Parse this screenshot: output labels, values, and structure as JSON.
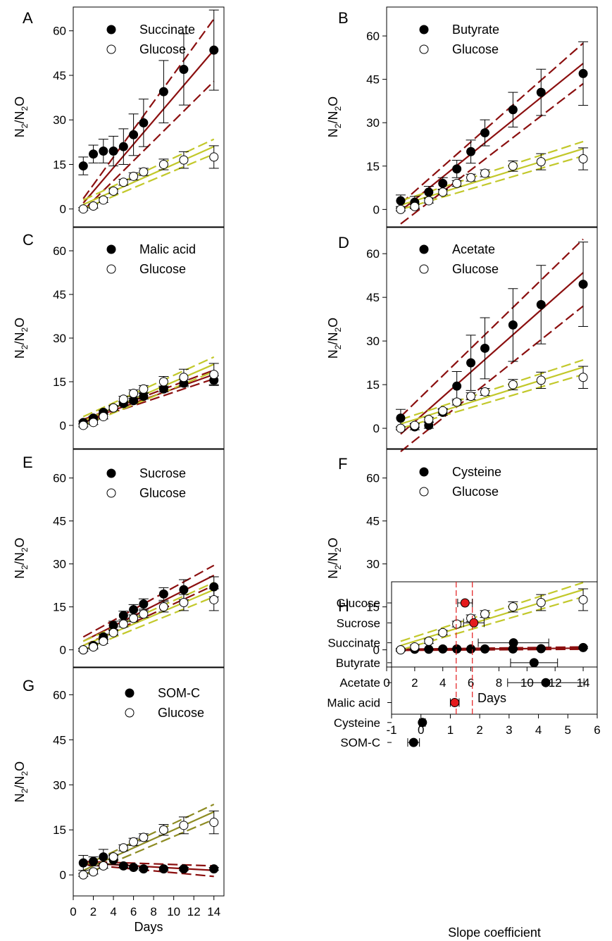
{
  "colors": {
    "treatment_fit": "#8b0f0f",
    "glucose_fit": "#c2c82a",
    "glucose_fit_g": "#8d8b22",
    "highlight_point": "#e41a1c",
    "reference_line": "#e41a1c"
  },
  "chart_data": [
    {
      "panel": "A",
      "type": "scatter",
      "ylabel_main": "N",
      "ylabel_sub1": "2",
      "ylabel_mid": "/N",
      "ylabel_sub2": "2",
      "ylabel_end": "O",
      "xlabel": "",
      "xlim": [
        0,
        15
      ],
      "ylim": [
        -6,
        68
      ],
      "y_ticks": [
        "0",
        "15",
        "30",
        "45",
        "60"
      ],
      "x_ticks": [],
      "legend": [
        "Succinate",
        "Glucose"
      ],
      "x": [
        1,
        2,
        3,
        4,
        5,
        6,
        7,
        9,
        11,
        14
      ],
      "series": [
        {
          "name": "Succinate",
          "marker": "filled",
          "y": [
            14.5,
            18.5,
            19.5,
            19.5,
            21,
            25,
            29,
            39.5,
            47,
            53.5
          ],
          "err": [
            3,
            3,
            4,
            5,
            6,
            7,
            8,
            10.5,
            12,
            13.5
          ],
          "fit": {
            "center": [
              2.0,
              53.5
            ],
            "upper": [
              3.5,
              64
            ],
            "lower": [
              -0.5,
              43
            ]
          }
        },
        {
          "name": "Glucose",
          "marker": "open",
          "y": [
            0,
            1,
            3,
            6,
            9,
            11,
            12.5,
            15,
            16.5,
            17.5
          ],
          "err": [
            0.5,
            0.7,
            0.8,
            0.8,
            1,
            1.2,
            1.2,
            1.8,
            2.8,
            3.8
          ],
          "fit": {
            "center": [
              1.5,
              21.0
            ],
            "upper": [
              3.0,
              23.5
            ],
            "lower": [
              0.0,
              18.5
            ]
          }
        }
      ]
    },
    {
      "panel": "B",
      "type": "scatter",
      "ylabel_main": "N",
      "ylabel_sub1": "2",
      "ylabel_mid": "/N",
      "ylabel_sub2": "2",
      "ylabel_end": "O",
      "xlabel": "",
      "xlim": [
        0,
        15
      ],
      "ylim": [
        -6,
        70
      ],
      "y_ticks": [
        "0",
        "15",
        "30",
        "45",
        "60"
      ],
      "x_ticks": [],
      "legend": [
        "Butyrate",
        "Glucose"
      ],
      "x": [
        1,
        2,
        3,
        4,
        5,
        6,
        7,
        9,
        11,
        14
      ],
      "series": [
        {
          "name": "Butyrate",
          "marker": "filled",
          "y": [
            3,
            2.5,
            6,
            9,
            14,
            20,
            26.5,
            34.5,
            40.5,
            47
          ],
          "err": [
            2,
            2,
            2,
            2,
            3,
            4,
            4.5,
            6,
            8,
            11
          ],
          "fit": {
            "center": [
              -0.5,
              50.5
            ],
            "upper": [
              2.0,
              57.5
            ],
            "lower": [
              -5.0,
              43.5
            ]
          }
        },
        {
          "name": "Glucose",
          "marker": "open",
          "y": [
            0,
            1,
            3,
            6,
            9,
            11,
            12.5,
            15,
            16.5,
            17.5
          ],
          "err": [
            0.5,
            0.7,
            0.8,
            0.8,
            1,
            1.2,
            1.2,
            1.8,
            2.8,
            3.8
          ],
          "fit": {
            "center": [
              1.5,
              21.0
            ],
            "upper": [
              3.0,
              23.5
            ],
            "lower": [
              0.0,
              18.5
            ]
          }
        }
      ]
    },
    {
      "panel": "C",
      "type": "scatter",
      "ylabel_main": "N",
      "ylabel_sub1": "2",
      "ylabel_mid": "/N",
      "ylabel_sub2": "2",
      "ylabel_end": "O",
      "xlabel": "",
      "xlim": [
        0,
        15
      ],
      "ylim": [
        -8,
        68
      ],
      "y_ticks": [
        "0",
        "15",
        "30",
        "45",
        "60"
      ],
      "x_ticks": [],
      "legend": [
        "Malic acid",
        "Glucose"
      ],
      "x": [
        1,
        2,
        3,
        4,
        5,
        6,
        7,
        9,
        11,
        14
      ],
      "series": [
        {
          "name": "Malic acid",
          "marker": "filled",
          "y": [
            1,
            2.5,
            4.5,
            6,
            7.5,
            8.5,
            10,
            12.5,
            14.5,
            15.5
          ],
          "err": [
            0.5,
            0.6,
            0.6,
            0.7,
            0.8,
            0.8,
            1,
            1,
            1.2,
            1.5
          ],
          "fit": {
            "center": [
              1.5,
              17.5
            ],
            "upper": [
              2.0,
              19.0
            ],
            "lower": [
              1.0,
              16.0
            ]
          }
        },
        {
          "name": "Glucose",
          "marker": "open",
          "y": [
            0,
            1,
            3,
            6,
            9,
            11,
            12.5,
            15,
            16.5,
            17.5
          ],
          "err": [
            0.5,
            0.7,
            0.8,
            0.8,
            1,
            1.2,
            1.2,
            1.8,
            2.8,
            3.8
          ],
          "fit": {
            "center": [
              1.5,
              21.0
            ],
            "upper": [
              3.0,
              23.5
            ],
            "lower": [
              0.0,
              18.5
            ]
          }
        }
      ]
    },
    {
      "panel": "D",
      "type": "scatter",
      "ylabel_main": "N",
      "ylabel_sub1": "2",
      "ylabel_mid": "/N",
      "ylabel_sub2": "2",
      "ylabel_end": "O",
      "xlabel": "",
      "xlim": [
        0,
        15
      ],
      "ylim": [
        -7,
        69
      ],
      "y_ticks": [
        "0",
        "15",
        "30",
        "45",
        "60"
      ],
      "x_ticks": [],
      "legend": [
        "Acetate",
        "Glucose"
      ],
      "x": [
        1,
        2,
        3,
        4,
        5,
        6,
        7,
        9,
        11,
        14
      ],
      "series": [
        {
          "name": "Acetate",
          "marker": "filled",
          "y": [
            3.5,
            0.5,
            1,
            5.5,
            14.5,
            22.5,
            27.5,
            35.5,
            42.5,
            49.5
          ],
          "err": [
            3,
            1,
            1,
            1,
            5,
            9.5,
            10.5,
            12.5,
            13.5,
            14.5
          ],
          "fit": {
            "center": [
              -2.0,
              53.5
            ],
            "upper": [
              4.0,
              65.0
            ],
            "lower": [
              -8.0,
              42.0
            ]
          }
        },
        {
          "name": "Glucose",
          "marker": "open",
          "y": [
            0,
            1,
            3,
            6,
            9,
            11,
            12.5,
            15,
            16.5,
            17.5
          ],
          "err": [
            0.5,
            0.7,
            0.8,
            0.8,
            1,
            1.2,
            1.2,
            1.8,
            2.8,
            3.8
          ],
          "fit": {
            "center": [
              1.5,
              21.0
            ],
            "upper": [
              3.0,
              23.5
            ],
            "lower": [
              0.0,
              18.5
            ]
          }
        }
      ]
    },
    {
      "panel": "E",
      "type": "scatter",
      "ylabel_main": "N",
      "ylabel_sub1": "2",
      "ylabel_mid": "/N",
      "ylabel_sub2": "2",
      "ylabel_end": "O",
      "xlabel": "",
      "xlim": [
        0,
        15
      ],
      "ylim": [
        -6,
        70
      ],
      "y_ticks": [
        "0",
        "15",
        "30",
        "45",
        "60"
      ],
      "x_ticks": [],
      "legend": [
        "Sucrose",
        "Glucose"
      ],
      "x": [
        1,
        2,
        3,
        4,
        5,
        6,
        7,
        9,
        11,
        14
      ],
      "series": [
        {
          "name": "Sucrose",
          "marker": "filled",
          "y": [
            0,
            1.5,
            4.5,
            8.5,
            12,
            14,
            16,
            19.5,
            21,
            22
          ],
          "err": [
            0.5,
            0.8,
            1,
            1.5,
            1.5,
            1.8,
            1.8,
            2.2,
            3.5,
            3.5
          ],
          "fit": {
            "center": [
              3.0,
              26.0
            ],
            "upper": [
              4.5,
              29.5
            ],
            "lower": [
              1.5,
              22.5
            ]
          }
        },
        {
          "name": "Glucose",
          "marker": "open",
          "y": [
            0,
            1,
            3,
            6,
            9,
            11,
            12.5,
            15,
            16.5,
            17.5
          ],
          "err": [
            0.5,
            0.7,
            0.8,
            0.8,
            1,
            1.2,
            1.2,
            1.8,
            2.8,
            3.8
          ],
          "fit": {
            "center": [
              1.5,
              21.0
            ],
            "upper": [
              3.0,
              23.5
            ],
            "lower": [
              0.0,
              18.5
            ]
          }
        }
      ]
    },
    {
      "panel": "F",
      "type": "scatter",
      "ylabel_main": "N",
      "ylabel_sub1": "2",
      "ylabel_mid": "/N",
      "ylabel_sub2": "2",
      "ylabel_end": "O",
      "xlabel": "Days",
      "xlim": [
        0,
        15
      ],
      "ylim": [
        -6,
        70
      ],
      "y_ticks": [
        "0",
        "15",
        "30",
        "45",
        "60"
      ],
      "x_ticks": [
        "0",
        "2",
        "4",
        "6",
        "8",
        "10",
        "12",
        "14"
      ],
      "legend": [
        "Cysteine",
        "Glucose"
      ],
      "x": [
        1,
        2,
        3,
        4,
        5,
        6,
        7,
        9,
        11,
        14
      ],
      "series": [
        {
          "name": "Cysteine",
          "marker": "filled",
          "y": [
            0,
            0.2,
            0.2,
            0.3,
            0.3,
            0.3,
            0.3,
            0.3,
            0.4,
            0.8
          ],
          "err": [
            0.1,
            0.1,
            0.1,
            0.1,
            0.1,
            0.1,
            0.1,
            0.1,
            0.2,
            0.3
          ],
          "fit": {
            "center": [
              0.0,
              0.6
            ],
            "upper": [
              0.2,
              1.0
            ],
            "lower": [
              -0.2,
              0.2
            ]
          }
        },
        {
          "name": "Glucose",
          "marker": "open",
          "y": [
            0,
            1,
            3,
            6,
            9,
            11,
            12.5,
            15,
            16.5,
            17.5
          ],
          "err": [
            0.5,
            0.7,
            0.8,
            0.8,
            1,
            1.2,
            1.2,
            1.8,
            2.8,
            3.8
          ],
          "fit": {
            "center": [
              1.5,
              21.0
            ],
            "upper": [
              3.0,
              23.5
            ],
            "lower": [
              0.0,
              18.5
            ]
          }
        }
      ]
    },
    {
      "panel": "G",
      "type": "scatter",
      "ylabel_main": "N",
      "ylabel_sub1": "2",
      "ylabel_mid": "/N",
      "ylabel_sub2": "2",
      "ylabel_end": "O",
      "xlabel": "Days",
      "xlim": [
        0,
        15
      ],
      "ylim": [
        -7,
        69
      ],
      "y_ticks": [
        "0",
        "15",
        "30",
        "45",
        "60"
      ],
      "x_ticks": [
        "0",
        "2",
        "4",
        "6",
        "8",
        "10",
        "12",
        "14"
      ],
      "legend": [
        "SOM-C",
        "Glucose"
      ],
      "x": [
        1,
        2,
        3,
        4,
        5,
        6,
        7,
        9,
        11,
        14
      ],
      "series": [
        {
          "name": "SOM-C",
          "marker": "filled",
          "y": [
            4,
            4.5,
            6,
            5,
            3,
            2.5,
            2,
            2,
            2,
            2
          ],
          "err": [
            2.5,
            1.5,
            2.5,
            1.5,
            0.5,
            0.5,
            0.5,
            0.5,
            0.5,
            0.5
          ],
          "fit": {
            "center": [
              4.0,
              1.5
            ],
            "upper": [
              4.5,
              3.0
            ],
            "lower": [
              3.5,
              -0.5
            ]
          }
        },
        {
          "name": "Glucose",
          "marker": "open",
          "y": [
            0,
            1,
            3,
            6,
            9,
            11,
            12.5,
            15,
            16.5,
            17.5
          ],
          "err": [
            0.5,
            0.7,
            0.8,
            0.8,
            1,
            1.2,
            1.2,
            1.8,
            2.8,
            3.8
          ],
          "fit": {
            "center": [
              1.5,
              21.0
            ],
            "upper": [
              3.0,
              23.5
            ],
            "lower": [
              0.0,
              18.5
            ]
          }
        }
      ]
    },
    {
      "panel": "H",
      "type": "scatter",
      "xlabel": "Slope coefficient",
      "xlim": [
        -1,
        6
      ],
      "x_ticks": [
        "-1",
        "0",
        "1",
        "2",
        "3",
        "4",
        "5",
        "6"
      ],
      "reference_lines": [
        1.2,
        1.75
      ],
      "categories": [
        "Glucose",
        "Sucrose",
        "Succinate",
        "Butyrate",
        "Acetate",
        "Malic acid",
        "Cysteine",
        "SOM-C"
      ],
      "values": [
        1.5,
        1.8,
        3.15,
        3.85,
        4.25,
        1.15,
        0.05,
        -0.25
      ],
      "err": [
        0.25,
        0.35,
        1.2,
        0.8,
        1.3,
        0.15,
        0.1,
        0.2
      ],
      "highlighted": [
        true,
        true,
        false,
        false,
        false,
        true,
        false,
        false
      ]
    }
  ]
}
